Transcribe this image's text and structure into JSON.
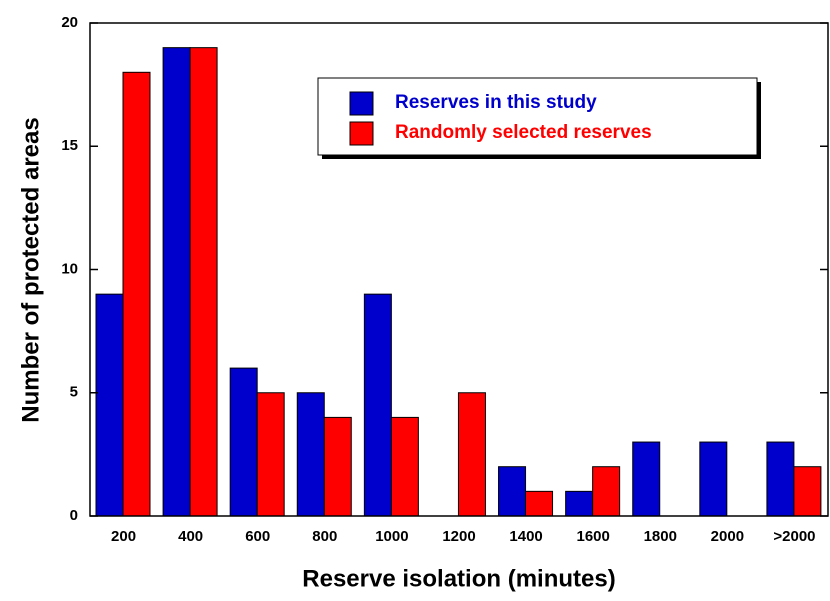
{
  "chart_data": {
    "type": "bar",
    "x_label": "Reserve isolation (minutes)",
    "y_label": "Number of protected areas",
    "categories": [
      "200",
      "400",
      "600",
      "800",
      "1000",
      "1200",
      "1400",
      "1600",
      "1800",
      "2000",
      ">2000"
    ],
    "series": [
      {
        "name": "Reserves in this study",
        "color": "#0000cc",
        "values": [
          9,
          19,
          6,
          5,
          9,
          0,
          2,
          1,
          3,
          3,
          3
        ]
      },
      {
        "name": "Randomly selected reserves",
        "color": "#ff0000",
        "values": [
          18,
          19,
          5,
          4,
          4,
          5,
          1,
          2,
          0,
          0,
          2
        ]
      }
    ],
    "ylim": [
      0,
      20
    ],
    "yticks": [
      0,
      5,
      10,
      15,
      20
    ]
  }
}
